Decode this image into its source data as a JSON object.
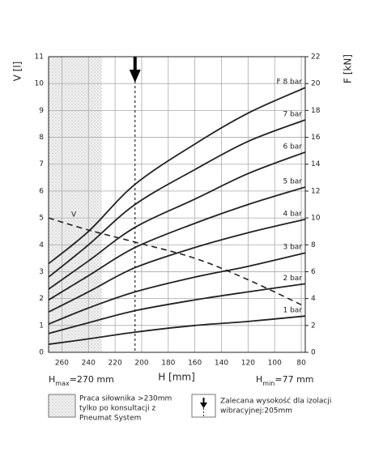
{
  "chart_data": {
    "type": "line",
    "ylabel": "V [l]",
    "y2label": "F [kN]",
    "xlabel": "H [mm]",
    "hmax_label": {
      "base": "H",
      "sub": "max",
      "rest": "=270 mm"
    },
    "hmin_label": {
      "base": "H",
      "sub": "min",
      "rest": "=77 mm"
    },
    "xlim": [
      270,
      77
    ],
    "xticks": [
      260,
      240,
      220,
      200,
      180,
      160,
      140,
      120,
      100,
      80
    ],
    "ylim": [
      0,
      11
    ],
    "yticks": [
      0,
      1,
      2,
      3,
      4,
      5,
      6,
      7,
      8,
      9,
      10,
      11
    ],
    "y2lim": [
      0,
      22
    ],
    "y2ticks": [
      0,
      2,
      4,
      6,
      8,
      10,
      12,
      14,
      16,
      18,
      20,
      22
    ],
    "grid": true,
    "hatch_range": [
      270,
      230
    ],
    "recommended_H": 205,
    "x": [
      270,
      240,
      205,
      160,
      120,
      77
    ],
    "series": [
      {
        "name": "F 8 bar",
        "color": "#222222",
        "axis": "y2",
        "values": [
          6.6,
          9.0,
          12.5,
          15.5,
          17.8,
          19.7
        ]
      },
      {
        "name": "7 bar",
        "color": "#222222",
        "axis": "y2",
        "values": [
          5.6,
          8.0,
          11.0,
          13.6,
          15.7,
          17.3
        ]
      },
      {
        "name": "6 bar",
        "color": "#222222",
        "axis": "y2",
        "values": [
          4.7,
          6.8,
          9.3,
          11.4,
          13.3,
          14.9
        ]
      },
      {
        "name": "5 bar",
        "color": "#222222",
        "axis": "y2",
        "values": [
          3.9,
          5.7,
          7.8,
          9.6,
          11.0,
          12.3
        ]
      },
      {
        "name": "4 bar",
        "color": "#222222",
        "axis": "y2",
        "values": [
          3.0,
          4.5,
          6.3,
          7.8,
          8.9,
          9.9
        ]
      },
      {
        "name": "3 bar",
        "color": "#222222",
        "axis": "y2",
        "values": [
          2.1,
          3.3,
          4.5,
          5.6,
          6.4,
          7.4
        ]
      },
      {
        "name": "2 bar",
        "color": "#222222",
        "axis": "y2",
        "values": [
          1.4,
          2.2,
          3.1,
          3.9,
          4.5,
          5.1
        ]
      },
      {
        "name": "1 bar",
        "color": "#222222",
        "axis": "y2",
        "values": [
          0.6,
          1.0,
          1.5,
          2.0,
          2.3,
          2.7
        ]
      },
      {
        "name": "V",
        "color": "#222222",
        "axis": "y",
        "dashed": true,
        "values": [
          5.0,
          4.55,
          4.1,
          3.5,
          2.7,
          1.7
        ]
      }
    ],
    "legend": {
      "hatch_text": [
        "Praca siłownika >230mm",
        "tylko po konsultacji z",
        "Pneumat System"
      ],
      "arrow_text": [
        "Zalecana wysokość dla izolacji",
        "wibracyjnej:205mm"
      ]
    }
  }
}
